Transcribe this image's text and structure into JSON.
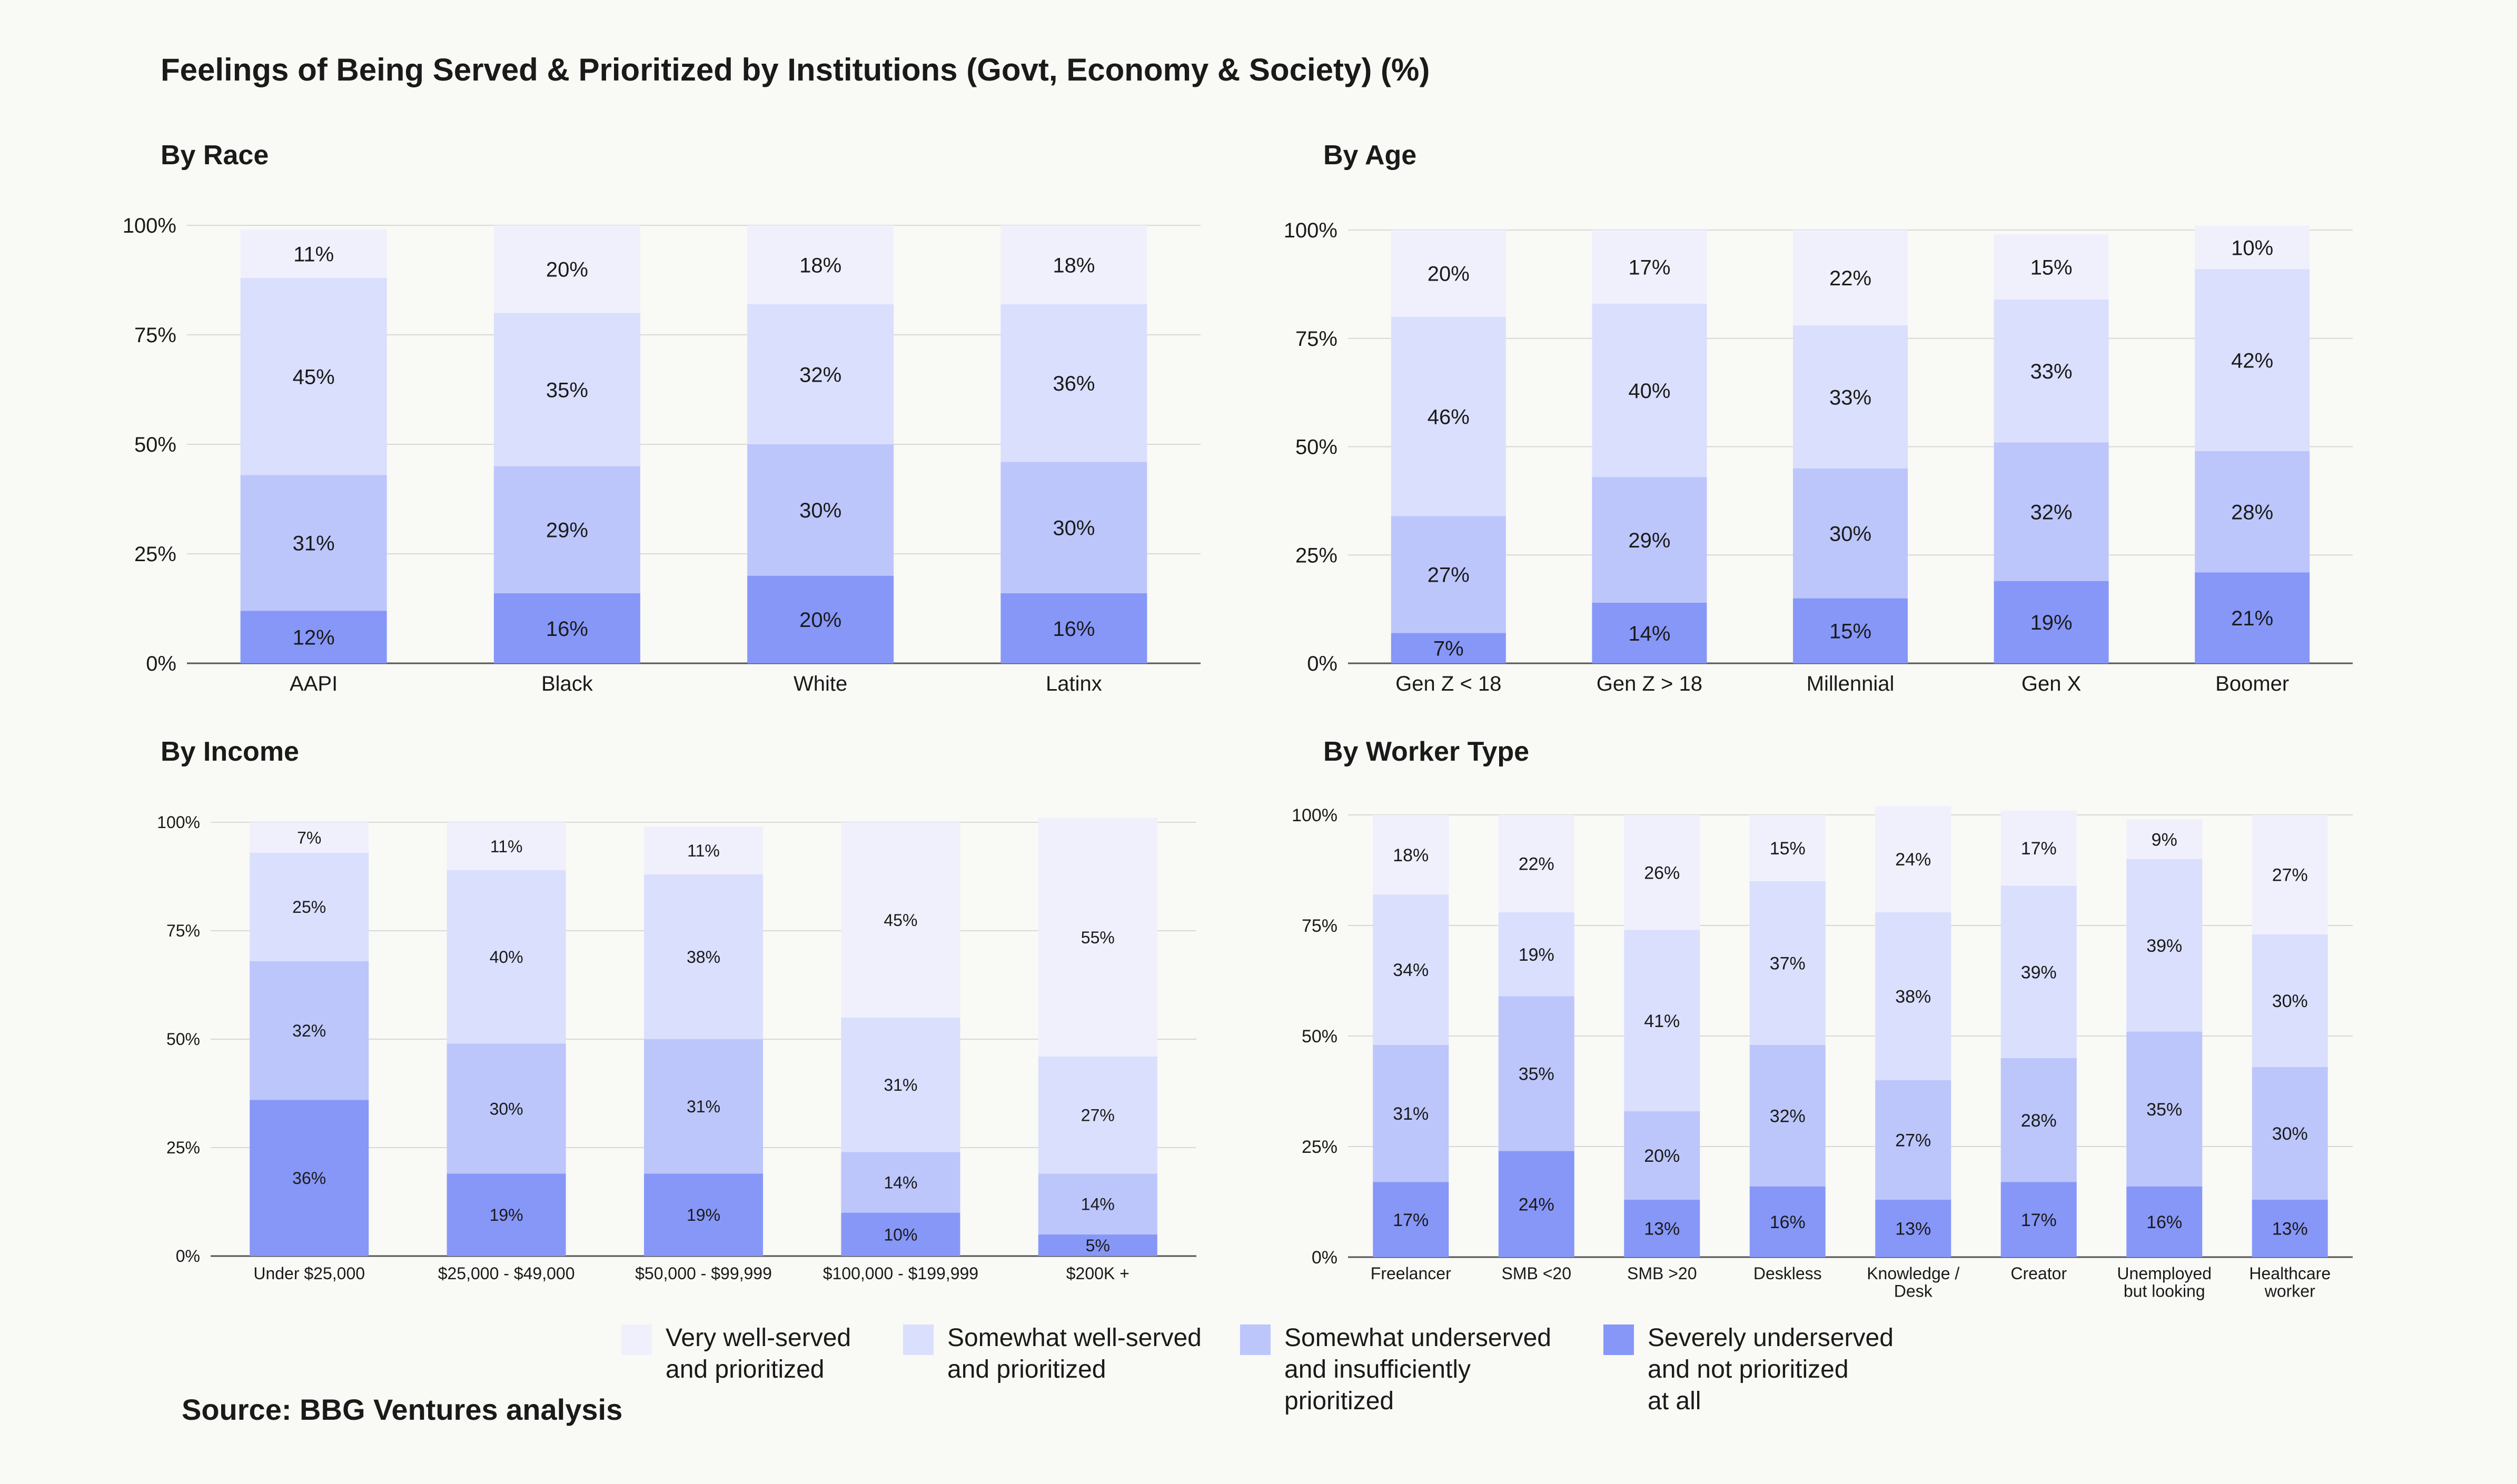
{
  "title": "Feelings of Being Served & Prioritized by Institutions (Govt, Economy & Society) (%)",
  "source": "Source: BBG Ventures analysis",
  "colors": {
    "very_well_served": "#f0f0fd",
    "somewhat_well_served": "#dadffd",
    "somewhat_underserved": "#bcc6fb",
    "severely_underserved": "#8797f8"
  },
  "legend": [
    {
      "key": "very_well_served",
      "label": "Very well-served\nand prioritized"
    },
    {
      "key": "somewhat_well_served",
      "label": "Somewhat well-served\nand prioritized"
    },
    {
      "key": "somewhat_underserved",
      "label": "Somewhat underserved\nand insufficiently\nprioritized"
    },
    {
      "key": "severely_underserved",
      "label": "Severely underserved\nand not prioritized\nat all"
    }
  ],
  "chart_data": [
    {
      "id": "race",
      "type": "bar",
      "stacked": true,
      "title": "By Race",
      "categories": [
        "AAPI",
        "Black",
        "White",
        "Latinx"
      ],
      "ylim": [
        0,
        100
      ],
      "yticks": [
        "0%",
        "25%",
        "50%",
        "75%",
        "100%"
      ],
      "series": [
        {
          "name": "Severely underserved and not prioritized at all",
          "key": "severely_underserved",
          "values": [
            12,
            16,
            20,
            16
          ]
        },
        {
          "name": "Somewhat underserved and insufficiently prioritized",
          "key": "somewhat_underserved",
          "values": [
            31,
            29,
            30,
            30
          ]
        },
        {
          "name": "Somewhat well-served and prioritized",
          "key": "somewhat_well_served",
          "values": [
            45,
            35,
            32,
            36
          ]
        },
        {
          "name": "Very well-served and prioritized",
          "key": "very_well_served",
          "values": [
            11,
            20,
            18,
            18
          ]
        }
      ]
    },
    {
      "id": "age",
      "type": "bar",
      "stacked": true,
      "title": "By Age",
      "categories": [
        "Gen Z < 18",
        "Gen Z > 18",
        "Millennial",
        "Gen X",
        "Boomer"
      ],
      "ylim": [
        0,
        100
      ],
      "yticks": [
        "0%",
        "25%",
        "50%",
        "75%",
        "100%"
      ],
      "series": [
        {
          "name": "Severely underserved and not prioritized at all",
          "key": "severely_underserved",
          "values": [
            7,
            14,
            15,
            19,
            21
          ]
        },
        {
          "name": "Somewhat underserved and insufficiently prioritized",
          "key": "somewhat_underserved",
          "values": [
            27,
            29,
            30,
            32,
            28
          ]
        },
        {
          "name": "Somewhat well-served and prioritized",
          "key": "somewhat_well_served",
          "values": [
            46,
            40,
            33,
            33,
            42
          ]
        },
        {
          "name": "Very well-served and prioritized",
          "key": "very_well_served",
          "values": [
            20,
            17,
            22,
            15,
            10
          ]
        }
      ]
    },
    {
      "id": "income",
      "type": "bar",
      "stacked": true,
      "title": "By Income",
      "categories": [
        "Under $25,000",
        "$25,000 - $49,000",
        "$50,000 - $99,999",
        "$100,000 - $199,999",
        "$200K +"
      ],
      "ylim": [
        0,
        100
      ],
      "yticks": [
        "0%",
        "25%",
        "50%",
        "75%",
        "100%"
      ],
      "series": [
        {
          "name": "Severely underserved and not prioritized at all",
          "key": "severely_underserved",
          "values": [
            36,
            19,
            19,
            10,
            5
          ]
        },
        {
          "name": "Somewhat underserved and insufficiently prioritized",
          "key": "somewhat_underserved",
          "values": [
            32,
            30,
            31,
            14,
            14
          ]
        },
        {
          "name": "Somewhat well-served and prioritized",
          "key": "somewhat_well_served",
          "values": [
            25,
            40,
            38,
            31,
            27
          ]
        },
        {
          "name": "Very well-served and prioritized",
          "key": "very_well_served",
          "values": [
            7,
            11,
            11,
            45,
            55
          ]
        }
      ]
    },
    {
      "id": "worker",
      "type": "bar",
      "stacked": true,
      "title": "By Worker Type",
      "categories": [
        "Freelancer",
        "SMB <20",
        "SMB >20",
        "Deskless",
        "Knowledge /\nDesk",
        "Creator",
        "Unemployed\nbut looking",
        "Healthcare\nworker"
      ],
      "ylim": [
        0,
        100
      ],
      "yticks": [
        "0%",
        "25%",
        "50%",
        "75%",
        "100%"
      ],
      "series": [
        {
          "name": "Severely underserved and not prioritized at all",
          "key": "severely_underserved",
          "values": [
            17,
            24,
            13,
            16,
            13,
            17,
            16,
            13
          ]
        },
        {
          "name": "Somewhat underserved and insufficiently prioritized",
          "key": "somewhat_underserved",
          "values": [
            31,
            35,
            20,
            32,
            27,
            28,
            35,
            30
          ]
        },
        {
          "name": "Somewhat well-served and prioritized",
          "key": "somewhat_well_served",
          "values": [
            34,
            19,
            41,
            37,
            38,
            39,
            39,
            30
          ]
        },
        {
          "name": "Very well-served and prioritized",
          "key": "very_well_served",
          "values": [
            18,
            22,
            26,
            15,
            24,
            17,
            9,
            27
          ]
        }
      ]
    }
  ]
}
